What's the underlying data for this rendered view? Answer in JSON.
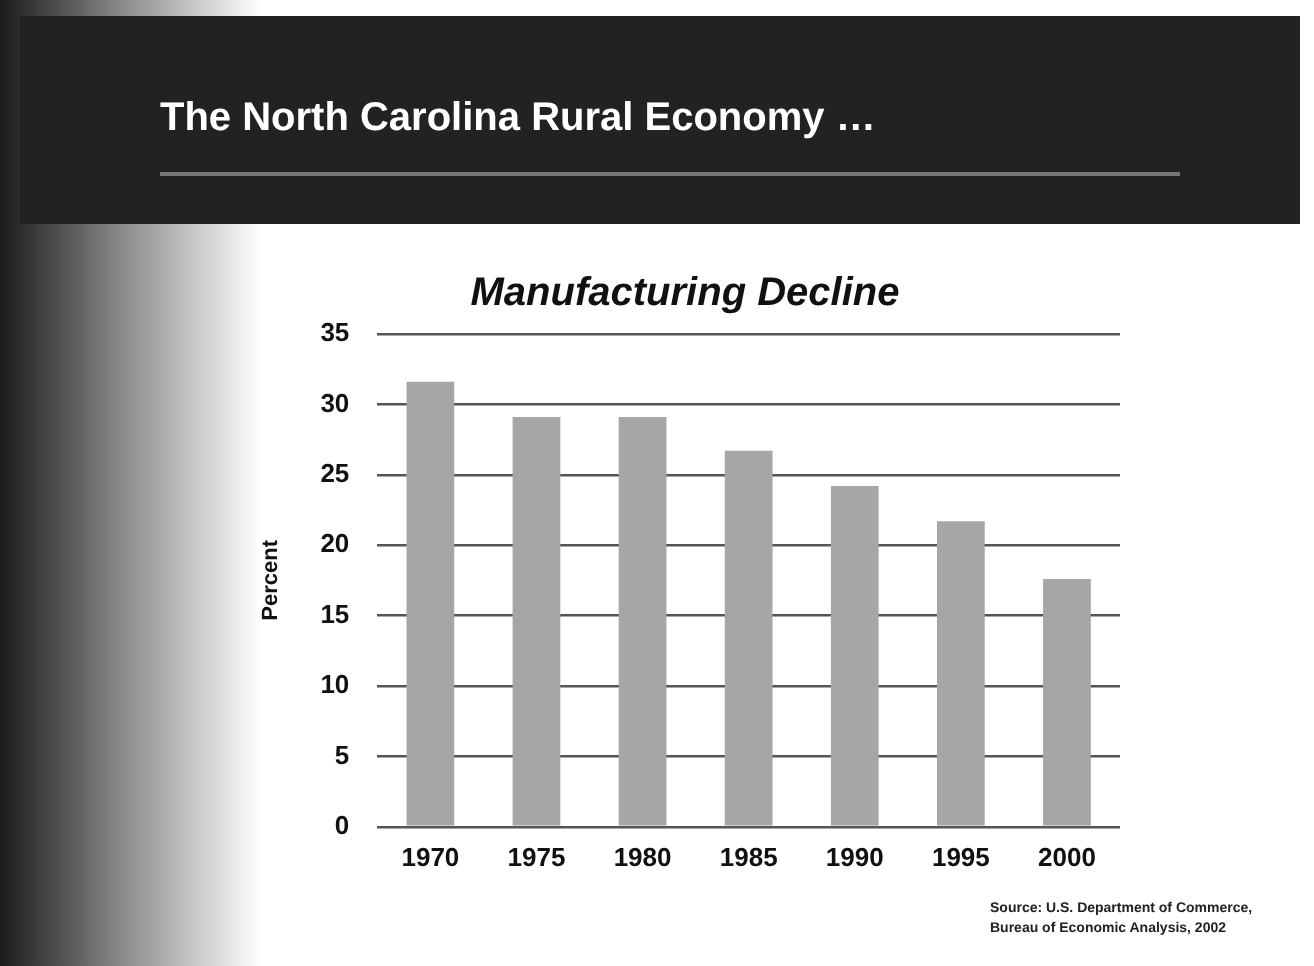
{
  "chart_data": {
    "type": "bar",
    "title": "The North Carolina Rural Economy …",
    "subtitle": "Manufacturing Decline",
    "ylabel": "Percent",
    "categories": [
      "1970",
      "1975",
      "1980",
      "1985",
      "1990",
      "1995",
      "2000"
    ],
    "values": [
      31.6,
      29.1,
      29.1,
      26.7,
      24.2,
      21.7,
      17.6
    ],
    "color": "#a6a6a6",
    "ylim": [
      0,
      35
    ],
    "yticks": [
      0,
      5,
      10,
      15,
      20,
      25,
      30,
      35
    ],
    "grid": "y",
    "legend": false,
    "annotations": [
      "Source: U.S. Department of Commerce,\nBureau of Economic Analysis, 2002"
    ]
  }
}
